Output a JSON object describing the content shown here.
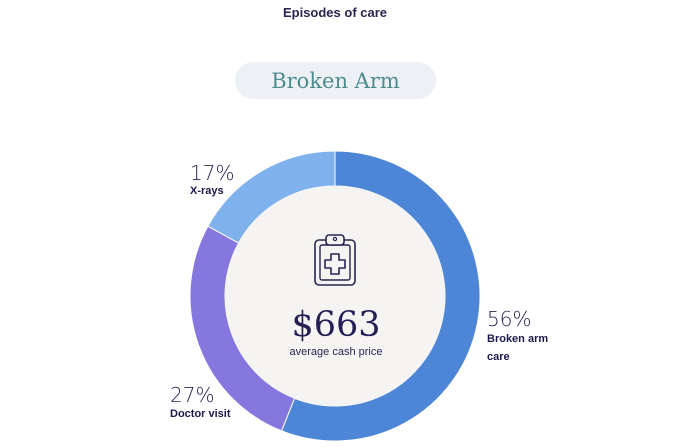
{
  "header": {
    "title": "Episodes of care"
  },
  "condition": {
    "label": "Broken Arm"
  },
  "center": {
    "price": "$663",
    "caption": "average cash price",
    "icon": "clipboard-medical-icon"
  },
  "legend": {
    "broken_arm_care": {
      "pct": "56%",
      "label": "Broken arm care"
    },
    "doctor_visit": {
      "pct": "27%",
      "label": "Doctor visit"
    },
    "xrays": {
      "pct": "17%",
      "label": "X-rays"
    }
  },
  "colors": {
    "broken_arm_care": "#4d86d6",
    "doctor_visit": "#8577dd",
    "xrays": "#7fb2ec",
    "center_fill": "#f5f4f2",
    "pill_bg": "#edf1f5",
    "pill_text": "#4d8b8f"
  },
  "chart_data": {
    "type": "pie",
    "title": "Broken Arm",
    "categories": [
      "Broken arm care",
      "Doctor visit",
      "X-rays"
    ],
    "values": [
      56,
      27,
      17
    ],
    "center_value": "$663",
    "center_label": "average cash price"
  }
}
